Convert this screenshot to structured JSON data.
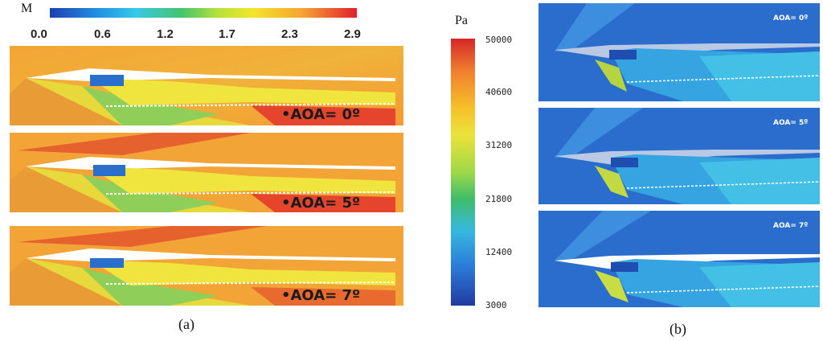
{
  "left_figure": {
    "colorbar_label": "M",
    "ticks": [
      "0.0",
      "0.6",
      "1.2",
      "1.7",
      "2.3",
      "2.9"
    ],
    "panels": [
      {
        "label": "•AOA= 0º"
      },
      {
        "label": "•AOA= 5º"
      },
      {
        "label": "•AOA= 7º"
      }
    ],
    "caption": "(a)"
  },
  "right_figure": {
    "colorbar_label": "Pa",
    "ticks": [
      "50000",
      "40600",
      "31200",
      "21800",
      "12400",
      "3000"
    ],
    "panels": [
      {
        "label": "AOA= 0º"
      },
      {
        "label": "AOA= 5º"
      },
      {
        "label": "AOA= 7º"
      }
    ],
    "caption": "(b)"
  },
  "colors": {
    "mach_high": "#e0202a",
    "mach_field": "#f2a433",
    "pressure_field": "#2e6fcf",
    "pressure_high": "#d62728"
  }
}
